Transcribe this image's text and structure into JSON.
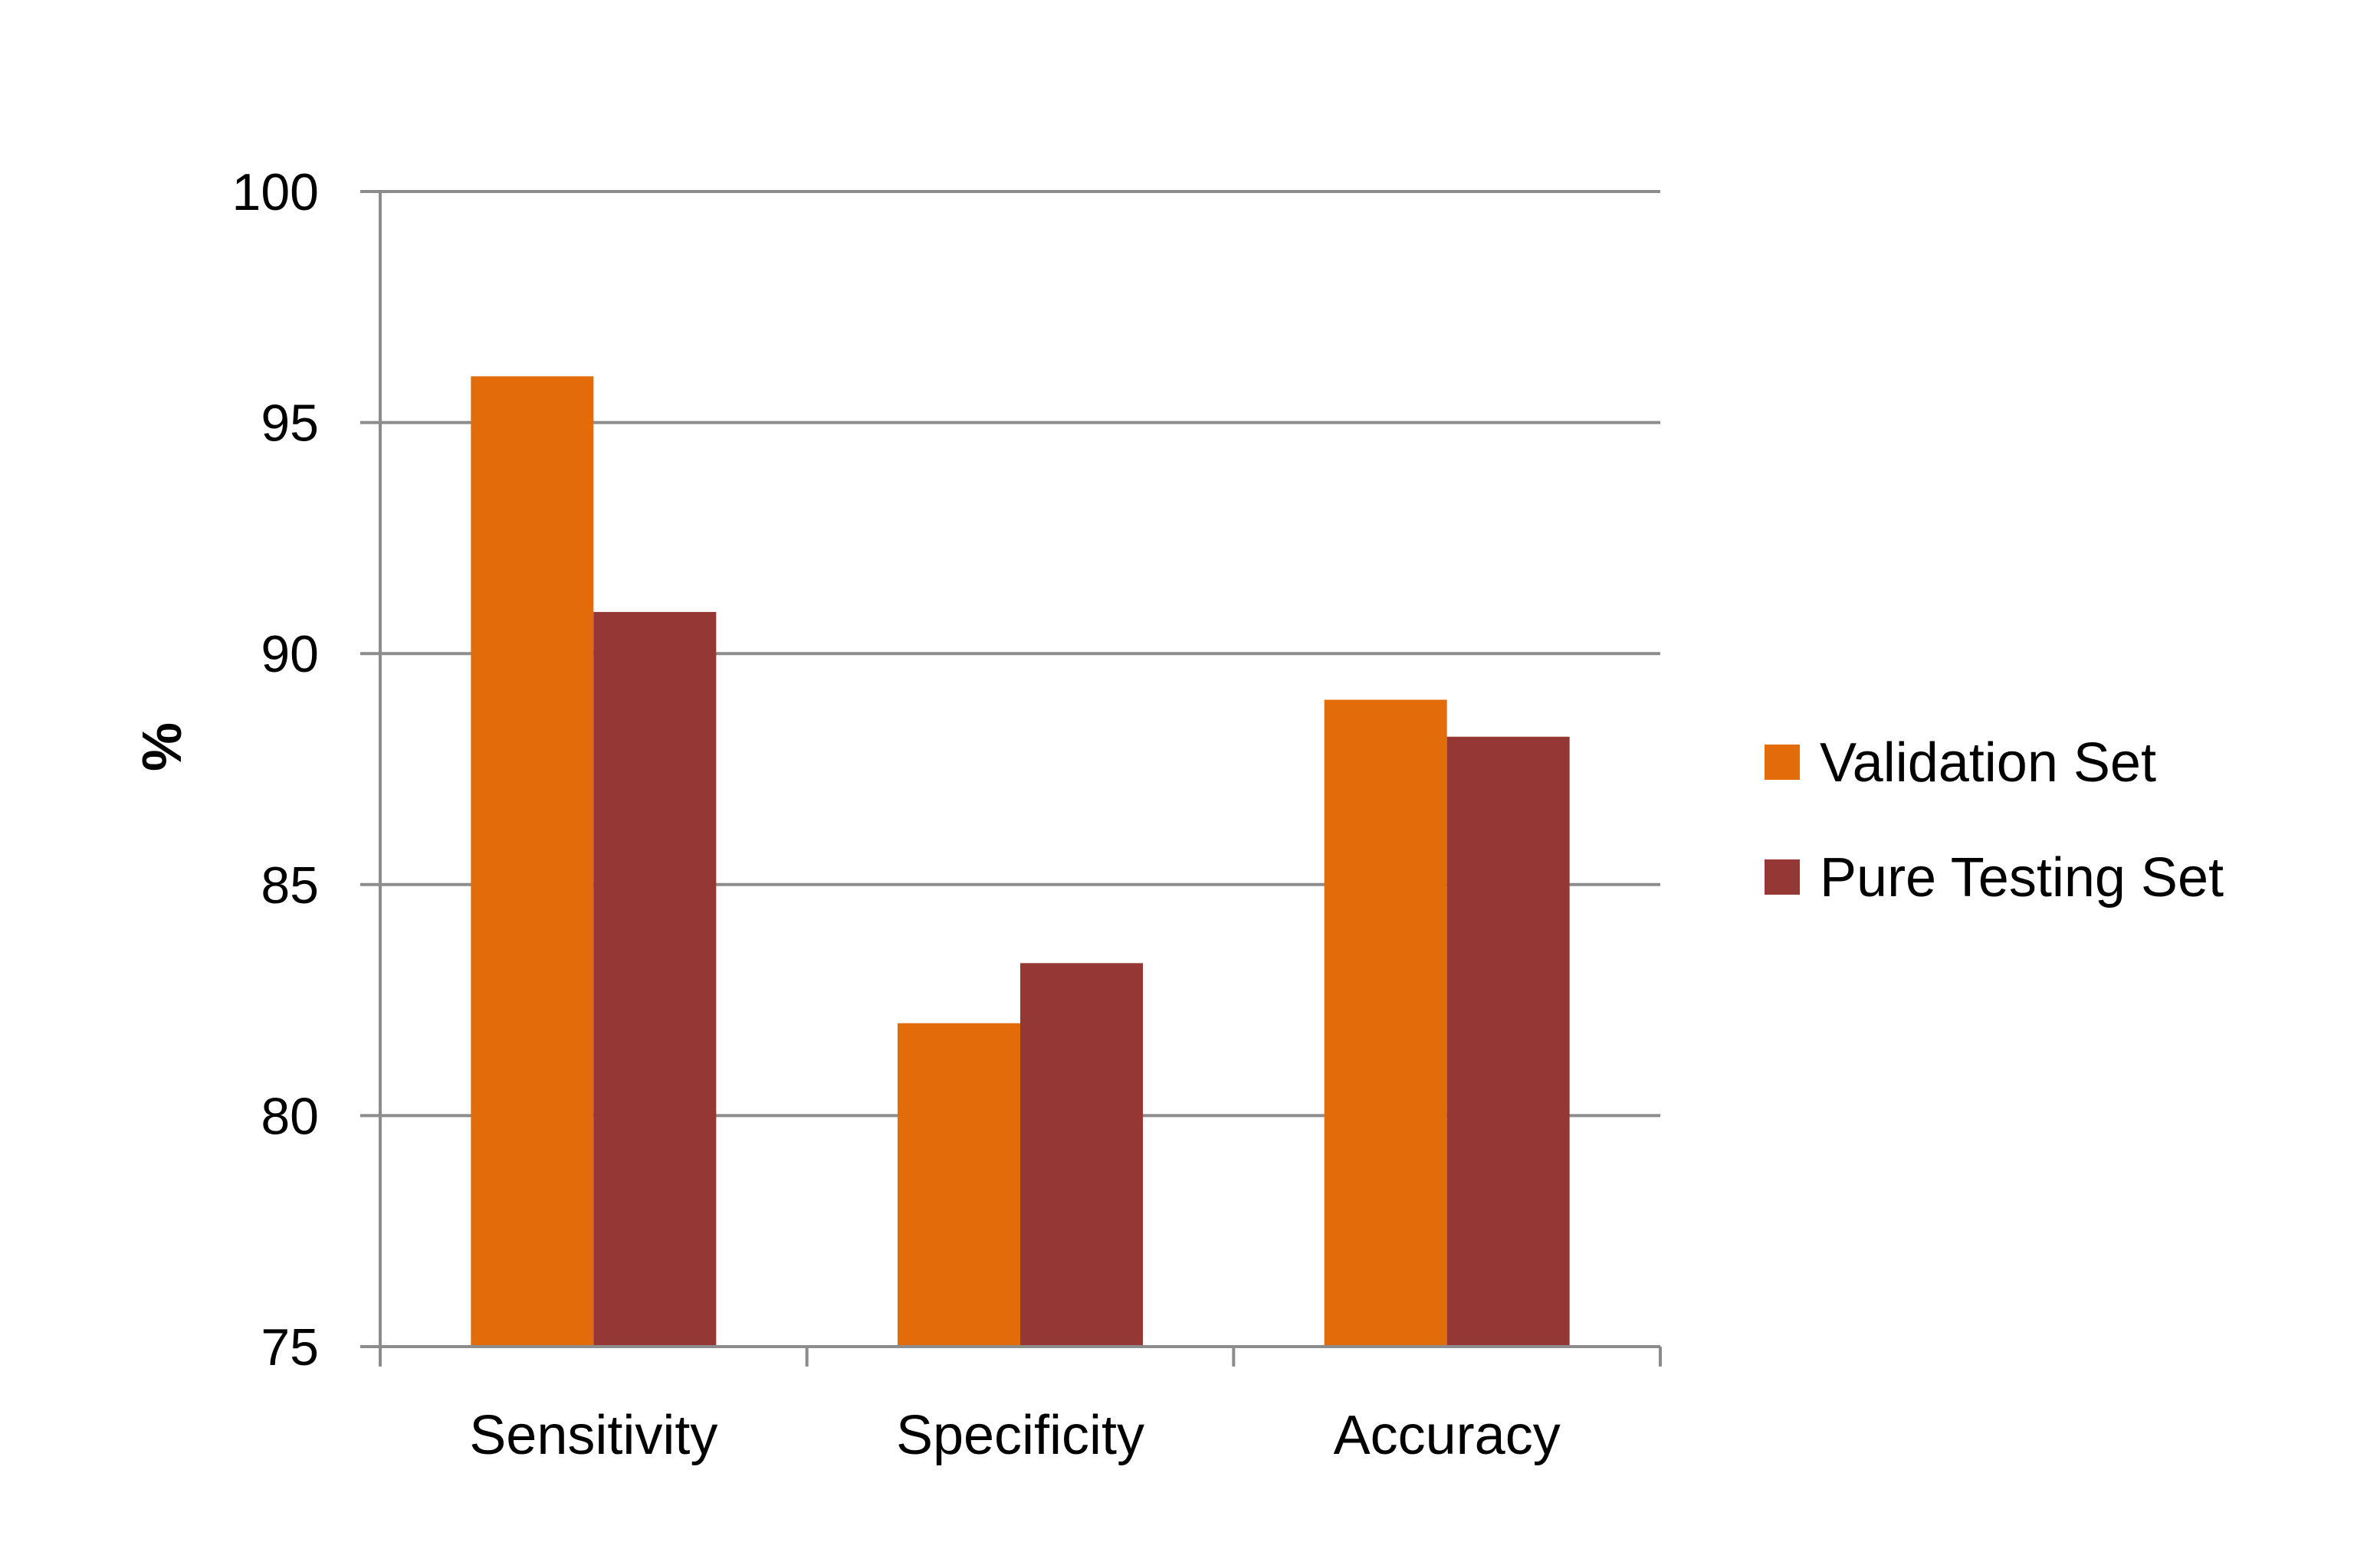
{
  "chart_data": {
    "type": "bar",
    "title": "",
    "xlabel": "",
    "ylabel": "%",
    "ylim": [
      75,
      100
    ],
    "yticks": [
      75,
      80,
      85,
      90,
      95,
      100
    ],
    "grid": true,
    "legend_position": "right",
    "categories": [
      "Sensitivity",
      "Specificity",
      "Accuracy"
    ],
    "series": [
      {
        "name": "Validation Set",
        "color": "#E36C0A",
        "values": [
          96.0,
          82.0,
          89.0
        ]
      },
      {
        "name": "Pure Testing Set",
        "color": "#953735",
        "values": [
          90.9,
          83.3,
          88.2
        ]
      }
    ]
  }
}
